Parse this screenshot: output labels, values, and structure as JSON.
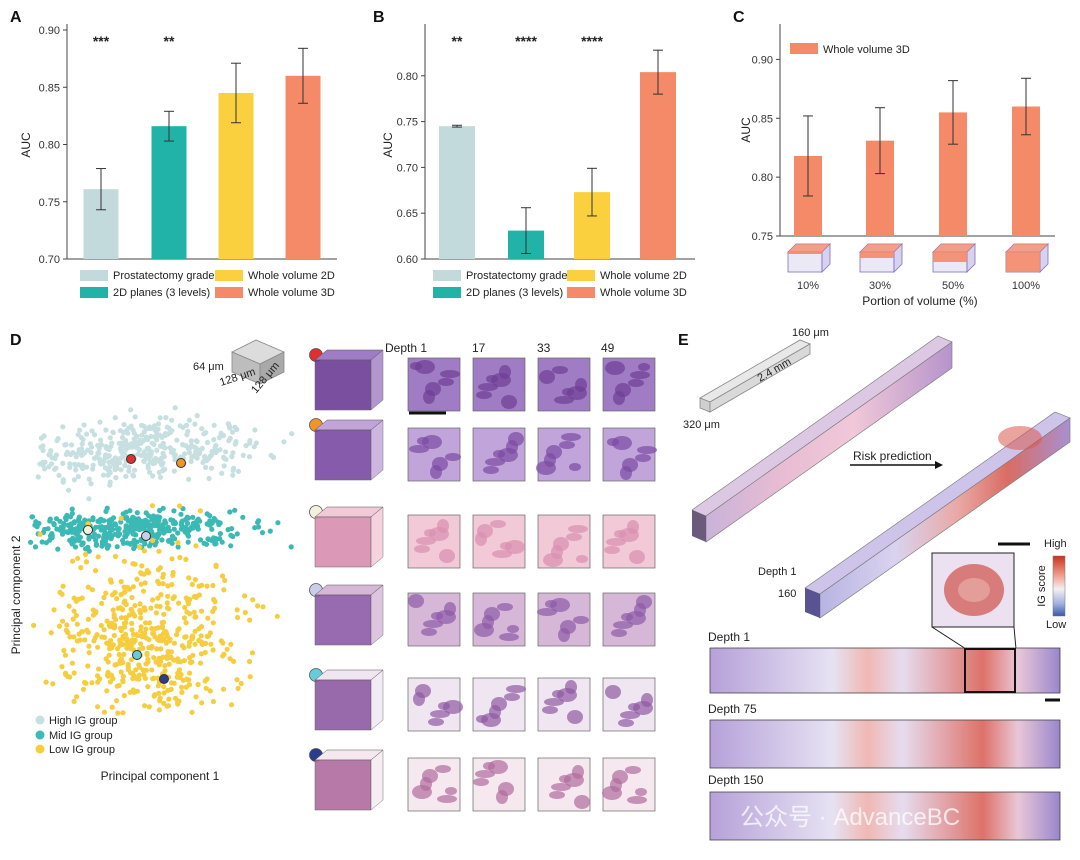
{
  "panels": {
    "A": "A",
    "B": "B",
    "C": "C",
    "D": "D",
    "E": "E"
  },
  "chart_data": [
    {
      "id": "A",
      "type": "bar",
      "ylabel": "AUC",
      "ylim": [
        0.7,
        0.9
      ],
      "yticks": [
        "0.70",
        "0.75",
        "0.80",
        "0.85",
        "0.90"
      ],
      "categories": [
        "Prostatectomy grade",
        "2D planes (3 levels)",
        "Whole volume 2D",
        "Whole volume 3D"
      ],
      "values": [
        0.761,
        0.816,
        0.845,
        0.86
      ],
      "errors": [
        0.018,
        0.013,
        0.026,
        0.024
      ],
      "significance": [
        "***",
        "**",
        "",
        ""
      ],
      "legend": [
        "Prostatectomy grade",
        "2D planes (3 levels)",
        "Whole volume 2D",
        "Whole volume 3D"
      ]
    },
    {
      "id": "B",
      "type": "bar",
      "ylabel": "AUC",
      "ylim": [
        0.6,
        0.85
      ],
      "yticks": [
        "0.60",
        "0.65",
        "0.70",
        "0.75",
        "0.80"
      ],
      "categories": [
        "Prostatectomy grade",
        "2D planes (3 levels)",
        "Whole volume 2D",
        "Whole volume 3D"
      ],
      "values": [
        0.745,
        0.631,
        0.673,
        0.804
      ],
      "errors": [
        0.001,
        0.025,
        0.026,
        0.024
      ],
      "significance": [
        "**",
        "****",
        "****",
        ""
      ],
      "legend": [
        "Prostatectomy grade",
        "2D planes (3 levels)",
        "Whole volume 2D",
        "Whole volume 3D"
      ]
    },
    {
      "id": "C",
      "type": "bar",
      "ylabel": "AUC",
      "xlabel": "Portion of volume (%)",
      "ylim": [
        0.75,
        0.925
      ],
      "yticks": [
        "0.75",
        "0.80",
        "0.85",
        "0.90"
      ],
      "categories": [
        "10%",
        "30%",
        "50%",
        "100%"
      ],
      "values": [
        0.818,
        0.831,
        0.855,
        0.86
      ],
      "errors": [
        0.034,
        0.028,
        0.027,
        0.024
      ],
      "legend": [
        "Whole volume 3D"
      ]
    }
  ],
  "colors": {
    "prostatectomy": "#c2dadb",
    "planes2d": "#22b3a8",
    "vol2d": "#fbd03f",
    "vol3d": "#f58a68",
    "high_ig": "#c6dfe0",
    "mid_ig": "#3bb9b4",
    "low_ig": "#f6cd3e"
  },
  "panelD": {
    "cube_size": "64 μm",
    "cube_w": "128 μm",
    "cube_d": "128 μm",
    "depth_headers": [
      "Depth 1",
      "17",
      "33",
      "49"
    ],
    "xlabel": "Principal component 1",
    "ylabel": "Principal component 2",
    "legend": [
      "High IG group",
      "Mid IG group",
      "Low IG group"
    ],
    "marker_colors": [
      "#e02f2f",
      "#f2922a",
      "#f3f1dd",
      "#c9cdea",
      "#66ccd9",
      "#2b3b8f"
    ]
  },
  "panelE": {
    "dim_h": "160 μm",
    "dim_l": "2.4 mm",
    "dim_w": "320 μm",
    "risk_label": "Risk prediction",
    "depth_label": "Depth 1",
    "depth_value": "160",
    "colorbar_high": "High",
    "colorbar_title": "IG score",
    "colorbar_low": "Low",
    "strips": [
      "Depth 1",
      "Depth 75",
      "Depth 150"
    ]
  },
  "watermark": "公众号 · AdvanceBC"
}
